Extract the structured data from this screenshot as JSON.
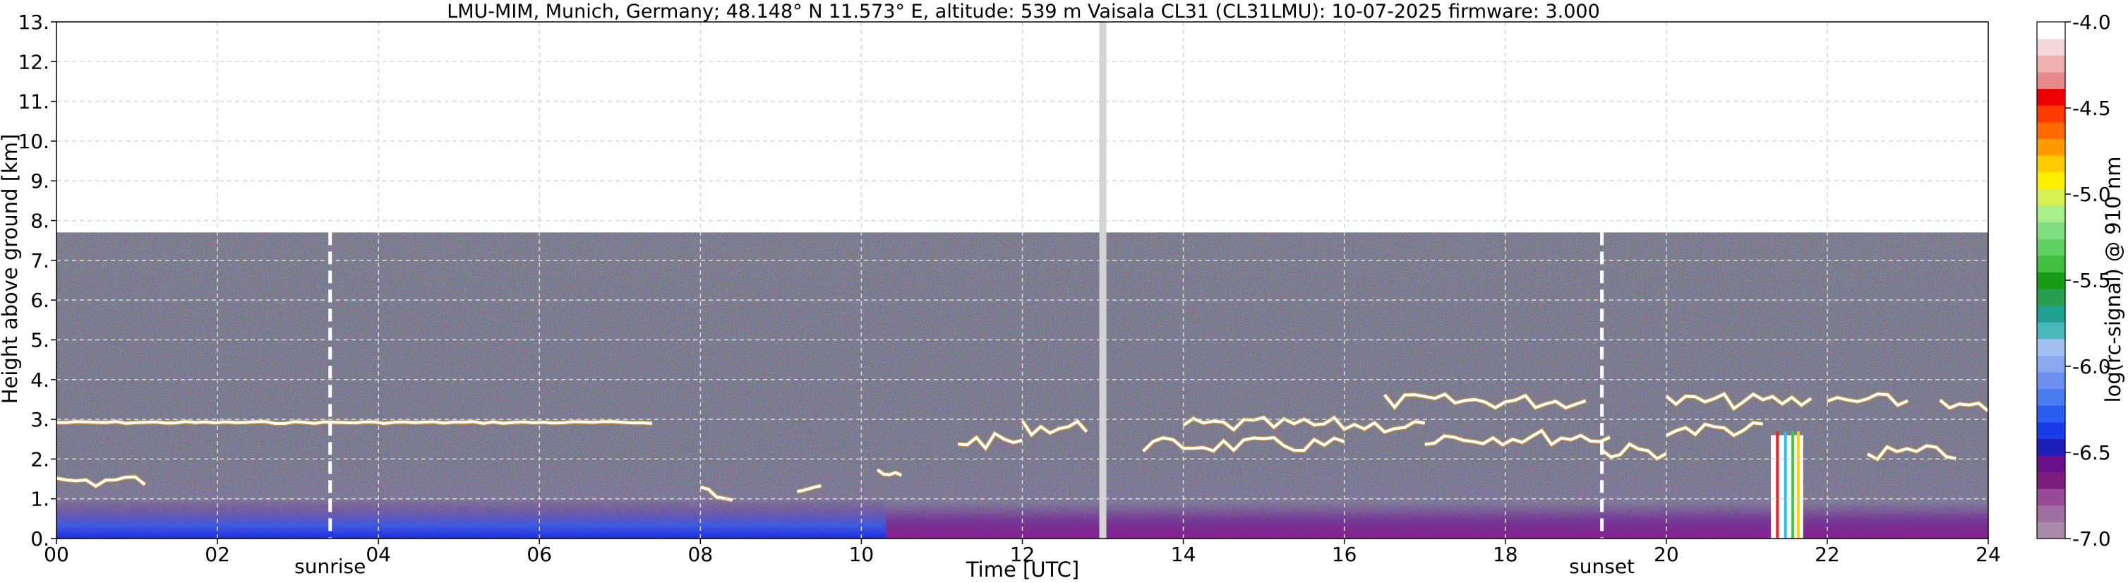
{
  "chart_data": {
    "type": "heatmap",
    "title": "LMU-MIM, Munich, Germany; 48.148° N 11.573° E, altitude: 539 m    Vaisala CL31 (CL31LMU): 10-07-2025    firmware: 3.000",
    "xlabel": "Time [UTC]",
    "ylabel": "Height above ground [km]",
    "xlim": [
      0,
      24
    ],
    "ylim": [
      0,
      13
    ],
    "x_ticks": [
      "00",
      "02",
      "04",
      "06",
      "08",
      "10",
      "12",
      "14",
      "16",
      "18",
      "20",
      "22",
      "24"
    ],
    "y_ticks": [
      "0.",
      "1.",
      "2.",
      "3.",
      "4.",
      "5.",
      "6.",
      "7.",
      "8.",
      "9.",
      "10.",
      "11.",
      "12.",
      "13."
    ],
    "grid": true,
    "data_top_km": 7.7,
    "colorbar": {
      "label": "log(rc-signal) @ 910 nm",
      "range": [
        -7.0,
        -4.0
      ],
      "ticks": [
        "-4.0",
        "-4.5",
        "-5.0",
        "-5.5",
        "-6.0",
        "-6.5",
        "-7.0"
      ],
      "colors": [
        "#a88aa8",
        "#a070a0",
        "#984c98",
        "#7c1c7c",
        "#6a0f8a",
        "#1d1db8",
        "#1a3ce8",
        "#2a5ef0",
        "#4a7cf0",
        "#6c90f0",
        "#8aa8f0",
        "#a0c0f0",
        "#48b8b8",
        "#20a090",
        "#28a050",
        "#169c16",
        "#40c040",
        "#60d060",
        "#80e080",
        "#a8f08a",
        "#d8f050",
        "#fff000",
        "#ffcc00",
        "#ff9a00",
        "#ff6a00",
        "#ff3a00",
        "#ee0000",
        "#e88a8a",
        "#f0b0b0",
        "#f4d8d8",
        "#ffffff"
      ]
    },
    "annotations": [
      {
        "text": "sunrise",
        "time": 3.4
      },
      {
        "text": "sunset",
        "time": 19.2
      }
    ],
    "data_gap": {
      "time": 13.0
    },
    "cloud_layers": [
      {
        "start": 0.0,
        "end": 7.4,
        "height_km": 2.92
      },
      {
        "start": 0.0,
        "end": 1.1,
        "height_km": 1.45
      },
      {
        "start": 8.0,
        "end": 8.4,
        "height_km": 1.15
      },
      {
        "start": 9.2,
        "end": 9.5,
        "height_km": 1.35
      },
      {
        "start": 10.2,
        "end": 10.5,
        "height_km": 1.55
      },
      {
        "start": 11.2,
        "end": 12.0,
        "height_km": 2.45
      },
      {
        "start": 12.0,
        "end": 12.8,
        "height_km": 2.8
      },
      {
        "start": 13.5,
        "end": 16.0,
        "height_km": 2.35
      },
      {
        "start": 14.0,
        "end": 17.0,
        "height_km": 2.85
      },
      {
        "start": 16.5,
        "end": 19.0,
        "height_km": 3.45
      },
      {
        "start": 17.0,
        "end": 19.3,
        "height_km": 2.55
      },
      {
        "start": 19.2,
        "end": 20.0,
        "height_km": 2.2
      },
      {
        "start": 20.0,
        "end": 21.8,
        "height_km": 3.45
      },
      {
        "start": 20.0,
        "end": 21.2,
        "height_km": 2.75
      },
      {
        "start": 22.0,
        "end": 23.0,
        "height_km": 3.45
      },
      {
        "start": 22.5,
        "end": 23.6,
        "height_km": 2.15
      },
      {
        "start": 23.4,
        "end": 24.0,
        "height_km": 3.3
      }
    ]
  }
}
